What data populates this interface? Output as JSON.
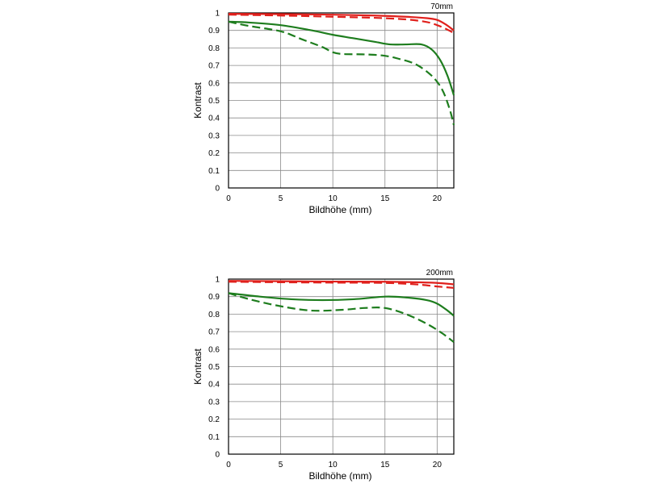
{
  "chart_data": [
    {
      "type": "line",
      "title": "70mm",
      "xlabel": "Bildhöhe (mm)",
      "ylabel": "Kontrast",
      "xlim": [
        0,
        21.6
      ],
      "ylim": [
        0,
        1
      ],
      "x_ticks": [
        "0",
        "5",
        "10",
        "15",
        "20"
      ],
      "y_ticks": [
        "0",
        "0.1",
        "0.2",
        "0.3",
        "0.4",
        "0.5",
        "0.6",
        "0.7",
        "0.8",
        "0.9",
        "1"
      ],
      "grid": true,
      "series": [
        {
          "color": "#e0201c",
          "dash": "solid",
          "x": [
            0,
            5,
            10,
            14,
            17,
            19,
            20,
            20.8,
            21.6
          ],
          "y": [
            0.995,
            0.993,
            0.99,
            0.985,
            0.978,
            0.97,
            0.96,
            0.935,
            0.9
          ]
        },
        {
          "color": "#e0201c",
          "dash": "dashed",
          "x": [
            0,
            5,
            10,
            14,
            17,
            19,
            20,
            20.8,
            21.6
          ],
          "y": [
            0.99,
            0.985,
            0.978,
            0.972,
            0.963,
            0.948,
            0.93,
            0.91,
            0.885
          ]
        },
        {
          "color": "#1e7d1e",
          "dash": "solid",
          "x": [
            0,
            2,
            5,
            8,
            10,
            12,
            14,
            15.5,
            17,
            18.5,
            19.5,
            20.3,
            21,
            21.6
          ],
          "y": [
            0.95,
            0.945,
            0.93,
            0.9,
            0.875,
            0.855,
            0.835,
            0.82,
            0.82,
            0.82,
            0.79,
            0.73,
            0.64,
            0.53
          ]
        },
        {
          "color": "#1e7d1e",
          "dash": "dashed",
          "x": [
            0,
            2,
            5,
            7,
            9,
            10,
            11,
            13,
            15,
            16.5,
            18,
            19.5,
            20.5,
            21.2,
            21.6
          ],
          "y": [
            0.95,
            0.925,
            0.895,
            0.85,
            0.805,
            0.775,
            0.765,
            0.763,
            0.755,
            0.735,
            0.705,
            0.64,
            0.56,
            0.45,
            0.36
          ]
        }
      ]
    },
    {
      "type": "line",
      "title": "200mm",
      "xlabel": "Bildhöhe (mm)",
      "ylabel": "Kontrast",
      "xlim": [
        0,
        21.6
      ],
      "ylim": [
        0,
        1
      ],
      "x_ticks": [
        "0",
        "5",
        "10",
        "15",
        "20"
      ],
      "y_ticks": [
        "0",
        "0.1",
        "0.2",
        "0.3",
        "0.4",
        "0.5",
        "0.6",
        "0.7",
        "0.8",
        "0.9",
        "1"
      ],
      "grid": true,
      "series": [
        {
          "color": "#e0201c",
          "dash": "solid",
          "x": [
            0,
            5,
            10,
            15,
            18,
            20,
            21.6
          ],
          "y": [
            0.99,
            0.988,
            0.986,
            0.985,
            0.982,
            0.978,
            0.97
          ]
        },
        {
          "color": "#e0201c",
          "dash": "dashed",
          "x": [
            0,
            5,
            10,
            15,
            18,
            20,
            21.6
          ],
          "y": [
            0.985,
            0.982,
            0.98,
            0.978,
            0.97,
            0.958,
            0.95
          ]
        },
        {
          "color": "#1e7d1e",
          "dash": "solid",
          "x": [
            0,
            3,
            6,
            9,
            12,
            15,
            17,
            19,
            20,
            21,
            21.6
          ],
          "y": [
            0.92,
            0.9,
            0.885,
            0.88,
            0.885,
            0.9,
            0.895,
            0.88,
            0.86,
            0.82,
            0.79
          ]
        },
        {
          "color": "#1e7d1e",
          "dash": "dashed",
          "x": [
            0,
            2,
            5,
            8,
            11,
            13,
            15,
            17,
            19,
            20.5,
            21.6
          ],
          "y": [
            0.92,
            0.885,
            0.845,
            0.82,
            0.825,
            0.835,
            0.835,
            0.8,
            0.745,
            0.69,
            0.64
          ]
        }
      ]
    }
  ]
}
